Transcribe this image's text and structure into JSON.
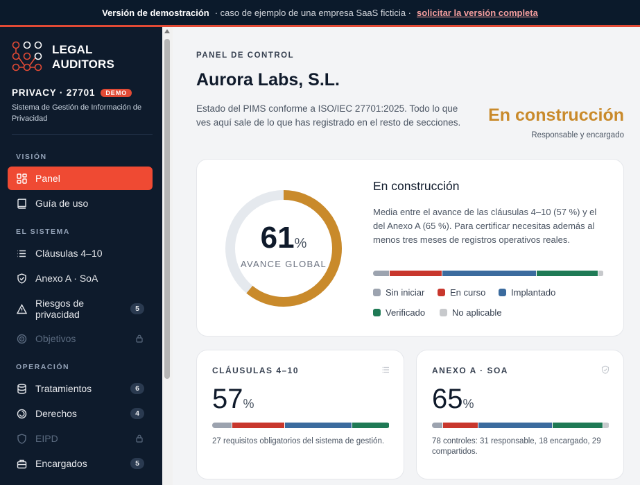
{
  "banner": {
    "label": "Versión de demostración",
    "subtitle": "· caso de ejemplo de una empresa SaaS ficticia ·",
    "link": "solicitar la versión completa"
  },
  "brand": {
    "name_line1": "LEGAL",
    "name_line2": "AUDITORS",
    "product": "PRIVACY · 27701",
    "badge": "DEMO",
    "description": "Sistema de Gestión de Información de Privacidad"
  },
  "sidebar": {
    "sections": {
      "vision": "VISIÓN",
      "system": "EL SISTEMA",
      "operation": "OPERACIÓN"
    },
    "items": [
      {
        "label": "Panel",
        "icon": "dashboard-icon",
        "active": true
      },
      {
        "label": "Guía de uso",
        "icon": "book-icon"
      },
      {
        "label": "Cláusulas 4–10",
        "icon": "list-icon"
      },
      {
        "label": "Anexo A · SoA",
        "icon": "shield-icon"
      },
      {
        "label": "Riesgos de privacidad",
        "icon": "warning-icon",
        "count": "5"
      },
      {
        "label": "Objetivos",
        "icon": "target-icon",
        "locked": true
      },
      {
        "label": "Tratamientos",
        "icon": "database-icon",
        "count": "6"
      },
      {
        "label": "Derechos",
        "icon": "rights-icon",
        "count": "4"
      },
      {
        "label": "EIPD",
        "icon": "eipd-shield-icon",
        "locked": true
      },
      {
        "label": "Encargados",
        "icon": "briefcase-icon",
        "count": "5"
      }
    ]
  },
  "page": {
    "eyebrow": "PANEL DE CONTROL",
    "title": "Aurora Labs, S.L.",
    "intro": "Estado del PIMS conforme a ISO/IEC 27701:2025. Todo lo que ves aquí sale de lo que has registrado en el resto de secciones.",
    "status": "En construcción",
    "status_sub": "Responsable y encargado"
  },
  "overview": {
    "percent": "61",
    "unit": "%",
    "label": "AVANCE GLOBAL",
    "progress": 0.61,
    "title": "En construcción",
    "description": "Media entre el avance de las cláusulas 4–10 (57 %) y el del Anexo A (65 %). Para certificar necesitas además al menos tres meses de registros operativos reales.",
    "distribution": [
      {
        "status": "Sin iniciar",
        "share": 0.07
      },
      {
        "status": "En curso",
        "share": 0.23
      },
      {
        "status": "Implantado",
        "share": 0.41
      },
      {
        "status": "Verificado",
        "share": 0.27
      },
      {
        "status": "No aplicable",
        "share": 0.02
      }
    ],
    "legend": [
      {
        "label": "Sin iniciar",
        "color": "#9ca3af"
      },
      {
        "label": "En curso",
        "color": "#c8372d"
      },
      {
        "label": "Implantado",
        "color": "#3b6b9e"
      },
      {
        "label": "Verificado",
        "color": "#1f7a55"
      },
      {
        "label": "No aplicable",
        "color": "#c7c9cc"
      }
    ]
  },
  "cards": {
    "clauses": {
      "title": "CLÁUSULAS 4–10",
      "icon": "list-icon",
      "percent": "57",
      "unit": "%",
      "description": "27 requisitos obligatorios del sistema de gestión.",
      "distribution": [
        0.11,
        0.3,
        0.38,
        0.21,
        0
      ]
    },
    "annex": {
      "title": "ANEXO A · SOA",
      "icon": "shield-icon",
      "percent": "65",
      "unit": "%",
      "description": "78 controles: 31 responsable, 18 encargado, 29 compartidos.",
      "distribution": [
        0.06,
        0.2,
        0.42,
        0.29,
        0.03
      ]
    }
  },
  "colors": {
    "accent": "#ef4a33",
    "gauge": "#c98a2b",
    "gauge_track": "#e5e9ee",
    "sidebar_bg": "#0e1b2c"
  }
}
